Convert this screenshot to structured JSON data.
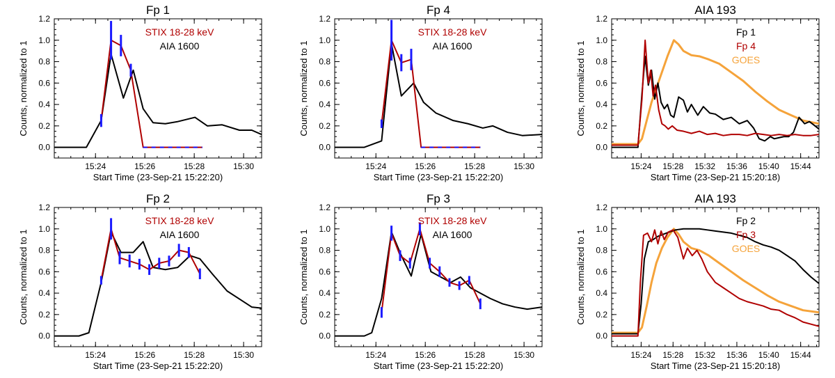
{
  "figure": {
    "ylabel": "Counts, normalized to 1",
    "colors": {
      "black": "#000000",
      "red": "#b00000",
      "blue": "#1a1aff",
      "orange": "#f5a33a"
    }
  },
  "chart_data": [
    {
      "type": "line",
      "title": "Fp 1",
      "xlabel": "Start Time (23-Sep-21 15:22:20)",
      "xlim": [
        0,
        8.4
      ],
      "ylim": [
        -0.1,
        1.2
      ],
      "xticks": [
        1.67,
        3.67,
        5.67,
        7.67
      ],
      "xtick_labels": [
        "15:24",
        "15:26",
        "15:28",
        "15:30"
      ],
      "yticks": [
        0,
        0.2,
        0.4,
        0.6,
        0.8,
        1.0,
        1.2
      ],
      "ytick_labels": [
        "0.0",
        "0.2",
        "0.4",
        "0.6",
        "0.8",
        "1.0",
        "1.2"
      ],
      "legend": [
        {
          "label": "STIX 18-28 keV",
          "color": "#b00000"
        },
        {
          "label": "AIA 1600",
          "color": "#000000"
        }
      ],
      "series": [
        {
          "name": "AIA 1600",
          "color": "#000000",
          "width": 2,
          "x": [
            0,
            1.3,
            1.9,
            2.3,
            2.8,
            3.2,
            3.6,
            4.0,
            4.5,
            5.0,
            5.7,
            6.2,
            6.8,
            7.5,
            8.0,
            8.4
          ],
          "y": [
            0,
            0,
            0.25,
            0.87,
            0.46,
            0.72,
            0.36,
            0.23,
            0.22,
            0.24,
            0.28,
            0.2,
            0.21,
            0.16,
            0.16,
            0.12
          ]
        },
        {
          "name": "STIX 18-28 keV",
          "color": "#b00000",
          "width": 2,
          "errors": true,
          "dashed_zero": true,
          "x": [
            1.9,
            2.3,
            2.7,
            3.1,
            3.6,
            4.0,
            4.5,
            5.0,
            5.5,
            6.0
          ],
          "y": [
            0.25,
            1.0,
            0.95,
            0.72,
            0,
            0,
            0,
            0,
            0,
            0
          ],
          "err": [
            0.06,
            0.18,
            0.1,
            0.06,
            0,
            0,
            0,
            0,
            0,
            0
          ]
        }
      ]
    },
    {
      "type": "line",
      "title": "Fp 4",
      "xlabel": "Start Time (23-Sep-21 15:22:20)",
      "xlim": [
        0,
        8.4
      ],
      "ylim": [
        -0.1,
        1.2
      ],
      "xticks": [
        1.67,
        3.67,
        5.67,
        7.67
      ],
      "xtick_labels": [
        "15:24",
        "15:26",
        "15:28",
        "15:30"
      ],
      "yticks": [
        0,
        0.2,
        0.4,
        0.6,
        0.8,
        1.0,
        1.2
      ],
      "ytick_labels": [
        "0.0",
        "0.2",
        "0.4",
        "0.6",
        "0.8",
        "1.0",
        "1.2"
      ],
      "legend": [
        {
          "label": "STIX 18-28 keV",
          "color": "#b00000"
        },
        {
          "label": "AIA 1600",
          "color": "#000000"
        }
      ],
      "series": [
        {
          "name": "AIA 1600",
          "color": "#000000",
          "width": 2,
          "x": [
            0,
            1.2,
            1.9,
            2.3,
            2.7,
            3.2,
            3.6,
            4.1,
            4.8,
            5.4,
            6.0,
            6.4,
            7.0,
            7.6,
            8.4
          ],
          "y": [
            0,
            0,
            0.06,
            0.97,
            0.48,
            0.6,
            0.42,
            0.32,
            0.25,
            0.22,
            0.18,
            0.2,
            0.14,
            0.11,
            0.12
          ]
        },
        {
          "name": "STIX 18-28 keV",
          "color": "#b00000",
          "width": 2,
          "errors": true,
          "dashed_zero": true,
          "x": [
            1.9,
            2.3,
            2.7,
            3.1,
            3.5,
            3.9,
            4.4,
            4.9,
            5.4,
            5.9
          ],
          "y": [
            0.22,
            1.0,
            0.79,
            0.82,
            0,
            0,
            0,
            0,
            0,
            0
          ],
          "err": [
            0.04,
            0.19,
            0.08,
            0.1,
            0,
            0,
            0,
            0,
            0,
            0
          ]
        }
      ]
    },
    {
      "type": "line",
      "title": "AIA 193",
      "xlabel": "Start Time (23-Sep-21 15:20:18)",
      "xlim": [
        0,
        26
      ],
      "ylim": [
        -0.1,
        1.2
      ],
      "xticks": [
        3.7,
        7.7,
        11.7,
        15.7,
        19.7,
        23.7
      ],
      "xtick_labels": [
        "15:24",
        "15:28",
        "15:32",
        "15:36",
        "15:40",
        "15:44"
      ],
      "yticks": [
        0,
        0.2,
        0.4,
        0.6,
        0.8,
        1.0,
        1.2
      ],
      "ytick_labels": [
        "0.0",
        "0.2",
        "0.4",
        "0.6",
        "0.8",
        "1.0",
        "1.2"
      ],
      "legend": [
        {
          "label": "Fp 1",
          "color": "#000000"
        },
        {
          "label": "Fp 4",
          "color": "#b00000"
        },
        {
          "label": "GOES",
          "color": "#f5a33a"
        }
      ],
      "series": [
        {
          "name": "GOES",
          "color": "#f5a33a",
          "width": 3,
          "x": [
            0,
            3.3,
            3.8,
            4.4,
            5,
            5.6,
            6.3,
            7,
            7.8,
            8.4,
            9,
            10,
            11,
            12.2,
            13.5,
            15,
            16.5,
            18,
            19.5,
            21,
            22.5,
            24,
            26
          ],
          "y": [
            0.03,
            0.03,
            0.08,
            0.25,
            0.42,
            0.55,
            0.7,
            0.85,
            1.0,
            0.96,
            0.9,
            0.86,
            0.85,
            0.82,
            0.78,
            0.7,
            0.62,
            0.52,
            0.43,
            0.35,
            0.3,
            0.25,
            0.22
          ]
        },
        {
          "name": "Fp 1",
          "color": "#000000",
          "width": 2,
          "x": [
            0,
            3.3,
            3.8,
            4.2,
            4.6,
            5.0,
            5.4,
            5.8,
            6.2,
            6.6,
            7.0,
            7.4,
            7.8,
            8.4,
            9,
            9.5,
            10,
            10.8,
            11.5,
            12.3,
            13,
            14,
            15,
            16,
            17,
            17.8,
            18.5,
            19.2,
            19.9,
            20.4,
            21,
            21.6,
            22.2,
            22.8,
            23.5,
            24.2,
            24.8,
            25.5,
            26
          ],
          "y": [
            0,
            0,
            0.5,
            0.85,
            0.58,
            0.72,
            0.45,
            0.6,
            0.42,
            0.36,
            0.4,
            0.3,
            0.28,
            0.47,
            0.44,
            0.33,
            0.4,
            0.3,
            0.38,
            0.32,
            0.31,
            0.26,
            0.28,
            0.22,
            0.25,
            0.18,
            0.08,
            0.06,
            0.1,
            0.08,
            0.09,
            0.1,
            0.1,
            0.14,
            0.28,
            0.22,
            0.24,
            0.2,
            0.17
          ]
        },
        {
          "name": "Fp 4",
          "color": "#b00000",
          "width": 2,
          "x": [
            0,
            3.3,
            3.8,
            4.2,
            4.6,
            4.9,
            5.2,
            5.5,
            5.9,
            6.3,
            6.7,
            7.1,
            7.6,
            8.2,
            9,
            10,
            11,
            12,
            13,
            14,
            15,
            16,
            17,
            18,
            19,
            20,
            21,
            22,
            23,
            24,
            25,
            26
          ],
          "y": [
            0.02,
            0.02,
            0.45,
            1.0,
            0.6,
            0.72,
            0.48,
            0.58,
            0.35,
            0.22,
            0.2,
            0.17,
            0.2,
            0.16,
            0.15,
            0.13,
            0.15,
            0.12,
            0.13,
            0.11,
            0.12,
            0.12,
            0.11,
            0.13,
            0.12,
            0.11,
            0.12,
            0.11,
            0.12,
            0.11,
            0.11,
            0.12
          ]
        }
      ]
    },
    {
      "type": "line",
      "title": "Fp 2",
      "xlabel": "Start Time (23-Sep-21 15:22:20)",
      "xlim": [
        0,
        8.4
      ],
      "ylim": [
        -0.1,
        1.2
      ],
      "xticks": [
        1.67,
        3.67,
        5.67,
        7.67
      ],
      "xtick_labels": [
        "15:24",
        "15:26",
        "15:28",
        "15:30"
      ],
      "yticks": [
        0,
        0.2,
        0.4,
        0.6,
        0.8,
        1.0,
        1.2
      ],
      "ytick_labels": [
        "0.0",
        "0.2",
        "0.4",
        "0.6",
        "0.8",
        "1.0",
        "1.2"
      ],
      "legend": [
        {
          "label": "STIX 18-28 keV",
          "color": "#b00000"
        },
        {
          "label": "AIA 1600",
          "color": "#000000"
        }
      ],
      "series": [
        {
          "name": "AIA 1600",
          "color": "#000000",
          "width": 2,
          "x": [
            0,
            1.0,
            1.4,
            1.9,
            2.3,
            2.7,
            3.2,
            3.6,
            4.0,
            4.5,
            5.0,
            5.5,
            5.9,
            6.4,
            7.0,
            7.6,
            8.0,
            8.4
          ],
          "y": [
            0,
            0,
            0.03,
            0.5,
            0.97,
            0.78,
            0.78,
            0.88,
            0.64,
            0.62,
            0.64,
            0.75,
            0.72,
            0.58,
            0.42,
            0.33,
            0.27,
            0.26
          ]
        },
        {
          "name": "STIX 18-28 keV",
          "color": "#b00000",
          "width": 2,
          "errors": true,
          "x": [
            1.9,
            2.3,
            2.65,
            3.05,
            3.45,
            3.85,
            4.25,
            4.65,
            5.05,
            5.45,
            5.9
          ],
          "y": [
            0.52,
            1.0,
            0.73,
            0.7,
            0.67,
            0.62,
            0.68,
            0.7,
            0.8,
            0.78,
            0.58
          ],
          "err": [
            0.04,
            0.1,
            0.06,
            0.06,
            0.05,
            0.05,
            0.05,
            0.05,
            0.06,
            0.05,
            0.05
          ]
        }
      ]
    },
    {
      "type": "line",
      "title": "Fp 3",
      "xlabel": "Start Time (23-Sep-21 15:22:20)",
      "xlim": [
        0,
        8.4
      ],
      "ylim": [
        -0.1,
        1.2
      ],
      "xticks": [
        1.67,
        3.67,
        5.67,
        7.67
      ],
      "xtick_labels": [
        "15:24",
        "15:26",
        "15:28",
        "15:30"
      ],
      "yticks": [
        0,
        0.2,
        0.4,
        0.6,
        0.8,
        1.0,
        1.2
      ],
      "ytick_labels": [
        "0.0",
        "0.2",
        "0.4",
        "0.6",
        "0.8",
        "1.0",
        "1.2"
      ],
      "legend": [
        {
          "label": "STIX 18-28 keV",
          "color": "#b00000"
        },
        {
          "label": "AIA 1600",
          "color": "#000000"
        }
      ],
      "series": [
        {
          "name": "AIA 1600",
          "color": "#000000",
          "width": 2,
          "x": [
            0,
            1.2,
            1.5,
            1.9,
            2.3,
            2.7,
            3.1,
            3.5,
            3.9,
            4.3,
            4.7,
            5.1,
            5.5,
            5.9,
            6.3,
            6.8,
            7.3,
            7.8,
            8.4
          ],
          "y": [
            0,
            0,
            0.03,
            0.35,
            0.97,
            0.75,
            0.56,
            0.95,
            0.6,
            0.55,
            0.5,
            0.55,
            0.45,
            0.4,
            0.35,
            0.3,
            0.27,
            0.25,
            0.27
          ]
        },
        {
          "name": "STIX 18-28 keV",
          "color": "#b00000",
          "width": 2,
          "errors": true,
          "x": [
            1.9,
            2.3,
            2.65,
            3.05,
            3.45,
            3.85,
            4.25,
            4.65,
            5.05,
            5.45,
            5.9
          ],
          "y": [
            0.22,
            0.96,
            0.75,
            0.68,
            1.0,
            0.68,
            0.6,
            0.5,
            0.47,
            0.52,
            0.3
          ],
          "err": [
            0.05,
            0.07,
            0.05,
            0.05,
            0.06,
            0.05,
            0.05,
            0.04,
            0.04,
            0.04,
            0.05
          ]
        }
      ]
    },
    {
      "type": "line",
      "title": "AIA 193",
      "xlabel": "Start Time (23-Sep-21 15:20:18)",
      "xlim": [
        0,
        26
      ],
      "ylim": [
        -0.1,
        1.2
      ],
      "xticks": [
        3.7,
        7.7,
        11.7,
        15.7,
        19.7,
        23.7
      ],
      "xtick_labels": [
        "15:24",
        "15:28",
        "15:32",
        "15:36",
        "15:40",
        "15:44"
      ],
      "yticks": [
        0,
        0.2,
        0.4,
        0.6,
        0.8,
        1.0,
        1.2
      ],
      "ytick_labels": [
        "0.0",
        "0.2",
        "0.4",
        "0.6",
        "0.8",
        "1.0",
        "1.2"
      ],
      "legend": [
        {
          "label": "Fp 2",
          "color": "#000000"
        },
        {
          "label": "Fp 3",
          "color": "#b00000"
        },
        {
          "label": "GOES",
          "color": "#f5a33a"
        }
      ],
      "series": [
        {
          "name": "GOES",
          "color": "#f5a33a",
          "width": 3,
          "x": [
            0,
            3.3,
            3.8,
            4.4,
            5,
            5.6,
            6.3,
            7,
            7.8,
            8.4,
            9,
            10,
            11,
            12.2,
            13.5,
            15,
            16.5,
            18,
            19.5,
            21,
            22.5,
            24,
            26
          ],
          "y": [
            0.03,
            0.03,
            0.08,
            0.28,
            0.5,
            0.68,
            0.82,
            0.92,
            1.0,
            0.95,
            0.88,
            0.82,
            0.8,
            0.75,
            0.68,
            0.6,
            0.52,
            0.45,
            0.38,
            0.32,
            0.28,
            0.24,
            0.22
          ]
        },
        {
          "name": "Fp 2",
          "color": "#000000",
          "width": 2,
          "x": [
            0,
            3.3,
            3.7,
            4.1,
            4.6,
            5.2,
            5.8,
            6.5,
            7.2,
            8,
            9,
            10,
            11,
            12,
            13,
            14,
            15,
            16,
            17,
            18,
            19,
            20,
            21,
            22,
            23,
            24,
            25,
            26
          ],
          "y": [
            0.02,
            0.02,
            0.3,
            0.72,
            0.88,
            0.9,
            0.93,
            0.95,
            0.97,
            0.99,
            1.0,
            1.0,
            1.0,
            0.99,
            0.98,
            0.97,
            0.96,
            0.94,
            0.92,
            0.88,
            0.85,
            0.83,
            0.8,
            0.75,
            0.7,
            0.62,
            0.55,
            0.49
          ]
        },
        {
          "name": "Fp 3",
          "color": "#b00000",
          "width": 2,
          "x": [
            0,
            3.3,
            3.6,
            4.0,
            4.5,
            5.0,
            5.4,
            5.8,
            6.2,
            6.6,
            7.1,
            7.7,
            8.3,
            9.0,
            9.5,
            10.1,
            10.7,
            11.3,
            12,
            13,
            14,
            15,
            16,
            17,
            18,
            19,
            20,
            21,
            22,
            23,
            24,
            25,
            26
          ],
          "y": [
            0,
            0,
            0.5,
            0.94,
            0.96,
            0.88,
            0.99,
            0.86,
            0.98,
            0.9,
            0.97,
            0.99,
            0.92,
            0.72,
            0.82,
            0.75,
            0.8,
            0.72,
            0.6,
            0.5,
            0.45,
            0.4,
            0.35,
            0.32,
            0.3,
            0.28,
            0.25,
            0.24,
            0.2,
            0.17,
            0.13,
            0.11,
            0.09
          ]
        }
      ]
    }
  ]
}
